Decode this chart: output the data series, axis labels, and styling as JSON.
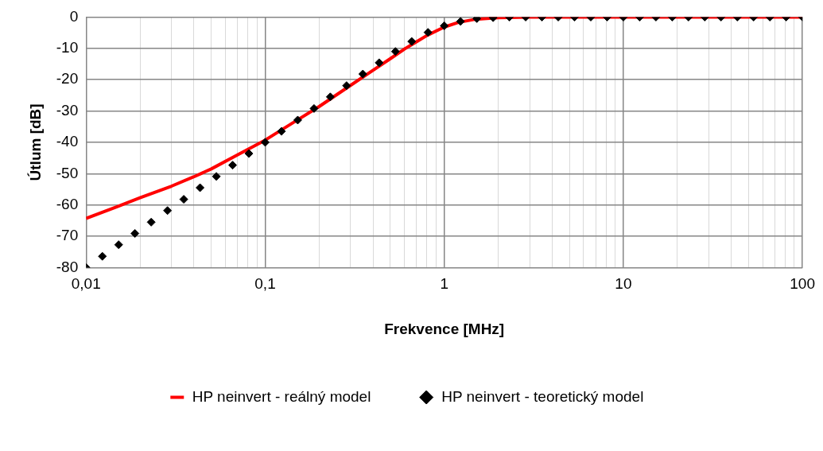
{
  "chart_data": {
    "type": "line",
    "xlabel": "Frekvence [MHz]",
    "ylabel": "Útlum [dB]",
    "log": "x",
    "grid": true,
    "legend": "bottom",
    "xlim": [
      0.01,
      100
    ],
    "ylim": [
      -80,
      0
    ],
    "xticks": [
      {
        "value": 0.01,
        "label": "0,01"
      },
      {
        "value": 0.02,
        "label": null
      },
      {
        "value": 0.03,
        "label": null
      },
      {
        "value": 0.04,
        "label": null
      },
      {
        "value": 0.05,
        "label": null
      },
      {
        "value": 0.06,
        "label": null
      },
      {
        "value": 0.07,
        "label": null
      },
      {
        "value": 0.08,
        "label": null
      },
      {
        "value": 0.09,
        "label": null
      },
      {
        "value": 0.1,
        "label": "0,1"
      },
      {
        "value": 0.2,
        "label": null
      },
      {
        "value": 0.3,
        "label": null
      },
      {
        "value": 0.4,
        "label": null
      },
      {
        "value": 0.5,
        "label": null
      },
      {
        "value": 0.6,
        "label": null
      },
      {
        "value": 0.7,
        "label": null
      },
      {
        "value": 0.8,
        "label": null
      },
      {
        "value": 0.9,
        "label": null
      },
      1,
      {
        "value": 2,
        "label": null
      },
      {
        "value": 3,
        "label": null
      },
      {
        "value": 4,
        "label": null
      },
      {
        "value": 5,
        "label": null
      },
      {
        "value": 6,
        "label": null
      },
      {
        "value": 7,
        "label": null
      },
      {
        "value": 8,
        "label": null
      },
      {
        "value": 9,
        "label": null
      },
      10,
      {
        "value": 20,
        "label": null
      },
      {
        "value": 30,
        "label": null
      },
      {
        "value": 40,
        "label": null
      },
      {
        "value": 50,
        "label": null
      },
      {
        "value": 60,
        "label": null
      },
      {
        "value": 70,
        "label": null
      },
      {
        "value": 80,
        "label": null
      },
      {
        "value": 90,
        "label": null
      },
      100
    ],
    "yticks": [
      -80,
      -70,
      -60,
      -50,
      -40,
      -30,
      -20,
      -10,
      0
    ],
    "series": [
      {
        "name": "HP neinvert - reálný model",
        "type": "line",
        "marker": "none",
        "line_style": "solid",
        "color": "#ff0000",
        "x": [
          0.01,
          0.015,
          0.02,
          0.03,
          0.04,
          0.05,
          0.07,
          0.1,
          0.15,
          0.2,
          0.3,
          0.4,
          0.5,
          0.6,
          0.7,
          0.8,
          1,
          1.2,
          1.5,
          2,
          3,
          10,
          100
        ],
        "values": [
          -64.3,
          -60.5,
          -57.7,
          -54,
          -51,
          -48.5,
          -44,
          -39.3,
          -33,
          -28.6,
          -21.8,
          -17,
          -13.3,
          -10.2,
          -7.9,
          -5.9,
          -3.2,
          -1.7,
          -0.7,
          -0.2,
          0,
          0,
          0
        ]
      },
      {
        "name": "HP neinvert - teoretický model",
        "type": "scatter",
        "marker": "diamond",
        "color": "#000000",
        "x": [
          0.01,
          0.01233,
          0.0152,
          0.01874,
          0.0231,
          0.02848,
          0.03511,
          0.04329,
          0.05337,
          0.06579,
          0.08111,
          0.1,
          0.1233,
          0.152,
          0.1874,
          0.231,
          0.2848,
          0.3511,
          0.4329,
          0.5337,
          0.6579,
          0.8111,
          1,
          1.233,
          1.52,
          1.874,
          2.31,
          2.848,
          3.511,
          4.329,
          5.337,
          6.579,
          8.111,
          10,
          12.33,
          15.2,
          18.74,
          23.1,
          28.48,
          35.11,
          43.29,
          53.37,
          65.79,
          81.11,
          100
        ],
        "values": [
          -80,
          -76.4,
          -72.7,
          -69.1,
          -65.5,
          -61.8,
          -58.2,
          -54.5,
          -50.9,
          -47.3,
          -43.6,
          -40,
          -36.5,
          -32.9,
          -29.2,
          -25.5,
          -21.9,
          -18.2,
          -14.6,
          -11,
          -7.8,
          -4.9,
          -2.8,
          -1.4,
          -0.5,
          -0.2,
          0,
          0,
          0,
          0,
          0,
          0,
          0,
          0,
          0,
          0,
          0,
          0,
          0,
          0,
          0,
          0,
          0,
          0,
          0
        ]
      }
    ]
  }
}
